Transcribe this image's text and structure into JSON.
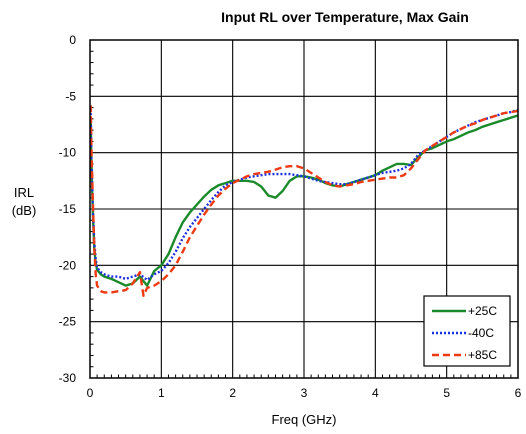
{
  "chart_data": {
    "type": "line",
    "title": "Input RL over Temperature, Max Gain",
    "xlabel": "Freq (GHz)",
    "ylabel_line1": "IRL",
    "ylabel_line2": "(dB)",
    "xlim": [
      0,
      6
    ],
    "ylim": [
      -30,
      0
    ],
    "xticks": [
      0,
      1,
      2,
      3,
      4,
      5,
      6
    ],
    "yticks": [
      0,
      -5,
      -10,
      -15,
      -20,
      -25,
      -30
    ],
    "xtick_labels": [
      "0",
      "1",
      "2",
      "3",
      "4",
      "5",
      "6"
    ],
    "ytick_labels": [
      "0",
      "-5",
      "-10",
      "-15",
      "-20",
      "-25",
      "-30"
    ],
    "grid": true,
    "legend_placement": "bottom-right",
    "series": [
      {
        "name": "+25C",
        "color": "#1a8a2a",
        "dash": "solid",
        "x": [
          0.01,
          0.02,
          0.04,
          0.06,
          0.08,
          0.1,
          0.15,
          0.2,
          0.3,
          0.4,
          0.5,
          0.6,
          0.7,
          0.8,
          0.9,
          1.0,
          1.1,
          1.2,
          1.3,
          1.4,
          1.5,
          1.6,
          1.7,
          1.8,
          1.9,
          2.0,
          2.1,
          2.2,
          2.3,
          2.4,
          2.5,
          2.6,
          2.7,
          2.8,
          2.9,
          3.0,
          3.1,
          3.2,
          3.3,
          3.4,
          3.5,
          3.6,
          3.7,
          3.8,
          3.9,
          4.0,
          4.1,
          4.2,
          4.3,
          4.4,
          4.5,
          4.6,
          4.7,
          4.8,
          4.9,
          5.0,
          5.1,
          5.2,
          5.3,
          5.4,
          5.5,
          5.6,
          5.7,
          5.8,
          5.9,
          6.0
        ],
        "y": [
          -7.0,
          -11.0,
          -15.5,
          -18.5,
          -19.8,
          -20.4,
          -20.8,
          -21.0,
          -21.2,
          -21.5,
          -21.8,
          -21.6,
          -21.0,
          -21.8,
          -20.5,
          -20.0,
          -19.0,
          -17.5,
          -16.2,
          -15.3,
          -14.6,
          -13.9,
          -13.3,
          -12.9,
          -12.7,
          -12.5,
          -12.5,
          -12.5,
          -12.6,
          -13.0,
          -13.8,
          -14.0,
          -13.4,
          -12.5,
          -12.1,
          -12.1,
          -12.2,
          -12.4,
          -12.7,
          -12.9,
          -13.0,
          -12.8,
          -12.6,
          -12.4,
          -12.2,
          -12.0,
          -11.6,
          -11.3,
          -11.0,
          -11.0,
          -11.1,
          -10.4,
          -9.8,
          -9.6,
          -9.3,
          -9.0,
          -8.8,
          -8.5,
          -8.2,
          -8.0,
          -7.7,
          -7.5,
          -7.3,
          -7.1,
          -6.9,
          -6.7
        ]
      },
      {
        "name": "-40C",
        "color": "#1c2fe0",
        "dash": "dotted",
        "x": [
          0.01,
          0.02,
          0.04,
          0.06,
          0.08,
          0.1,
          0.15,
          0.2,
          0.3,
          0.4,
          0.5,
          0.6,
          0.7,
          0.8,
          0.9,
          1.0,
          1.1,
          1.2,
          1.3,
          1.4,
          1.5,
          1.6,
          1.7,
          1.8,
          1.9,
          2.0,
          2.1,
          2.2,
          2.3,
          2.4,
          2.5,
          2.6,
          2.7,
          2.8,
          2.9,
          3.0,
          3.1,
          3.2,
          3.3,
          3.4,
          3.5,
          3.6,
          3.7,
          3.8,
          3.9,
          4.0,
          4.1,
          4.2,
          4.3,
          4.4,
          4.5,
          4.6,
          4.7,
          4.8,
          4.9,
          5.0,
          5.1,
          5.2,
          5.3,
          5.4,
          5.5,
          5.6,
          5.7,
          5.8,
          5.9,
          6.0
        ],
        "y": [
          -6.5,
          -10.5,
          -15.0,
          -18.0,
          -19.5,
          -20.2,
          -20.6,
          -20.8,
          -21.0,
          -21.0,
          -21.2,
          -21.0,
          -20.8,
          -21.3,
          -20.8,
          -20.5,
          -19.8,
          -18.8,
          -17.6,
          -16.6,
          -15.8,
          -15.0,
          -14.2,
          -13.5,
          -12.9,
          -12.6,
          -12.4,
          -12.2,
          -12.1,
          -12.0,
          -11.9,
          -11.9,
          -11.9,
          -11.9,
          -12.0,
          -12.1,
          -12.3,
          -12.5,
          -12.6,
          -12.7,
          -12.8,
          -12.8,
          -12.6,
          -12.4,
          -12.2,
          -12.0,
          -11.8,
          -11.7,
          -11.6,
          -11.4,
          -11.0,
          -10.2,
          -9.8,
          -9.4,
          -9.0,
          -8.6,
          -8.2,
          -7.9,
          -7.6,
          -7.3,
          -7.1,
          -6.9,
          -6.7,
          -6.5,
          -6.4,
          -6.2
        ]
      },
      {
        "name": "+85C",
        "color": "#ee3a12",
        "dash": "dashed",
        "x": [
          0.01,
          0.02,
          0.04,
          0.06,
          0.08,
          0.1,
          0.15,
          0.2,
          0.3,
          0.4,
          0.5,
          0.6,
          0.7,
          0.75,
          0.8,
          0.9,
          1.0,
          1.1,
          1.2,
          1.3,
          1.4,
          1.5,
          1.6,
          1.7,
          1.8,
          1.9,
          2.0,
          2.1,
          2.2,
          2.3,
          2.4,
          2.5,
          2.6,
          2.7,
          2.8,
          2.9,
          3.0,
          3.1,
          3.2,
          3.3,
          3.4,
          3.5,
          3.6,
          3.7,
          3.8,
          3.9,
          4.0,
          4.1,
          4.2,
          4.3,
          4.4,
          4.5,
          4.6,
          4.7,
          4.8,
          4.9,
          5.0,
          5.1,
          5.2,
          5.3,
          5.4,
          5.5,
          5.6,
          5.7,
          5.8,
          5.9,
          6.0
        ],
        "y": [
          -5.8,
          -9.5,
          -14.5,
          -18.5,
          -20.8,
          -21.8,
          -22.3,
          -22.4,
          -22.4,
          -22.3,
          -22.2,
          -21.6,
          -20.6,
          -22.7,
          -22.0,
          -21.8,
          -21.4,
          -20.8,
          -20.0,
          -18.8,
          -17.5,
          -16.5,
          -15.5,
          -14.6,
          -13.8,
          -13.2,
          -12.7,
          -12.4,
          -12.1,
          -11.9,
          -11.8,
          -11.7,
          -11.5,
          -11.3,
          -11.2,
          -11.2,
          -11.4,
          -11.8,
          -12.2,
          -12.6,
          -12.9,
          -13.0,
          -12.9,
          -12.8,
          -12.6,
          -12.5,
          -12.4,
          -12.3,
          -12.2,
          -12.2,
          -12.0,
          -11.4,
          -10.6,
          -9.8,
          -9.4,
          -9.0,
          -8.6,
          -8.2,
          -7.9,
          -7.6,
          -7.4,
          -7.1,
          -6.9,
          -6.7,
          -6.5,
          -6.4,
          -6.3
        ]
      }
    ]
  }
}
